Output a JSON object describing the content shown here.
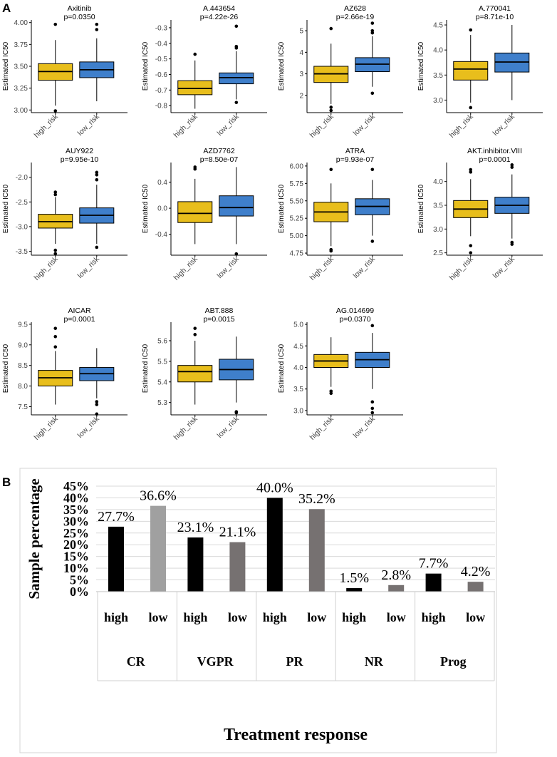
{
  "panel_a": {
    "label": "A",
    "groups": [
      "high_risk",
      "low_risk"
    ],
    "ylabel": "Estimated IC50",
    "colors": {
      "high_risk": "#E8BE1C",
      "low_risk": "#3F7FCB"
    }
  },
  "panel_b": {
    "label": "B",
    "colors": {
      "high": "#000000",
      "low_cr": "#A0A0A0",
      "low": "#767171"
    }
  },
  "chart_data": [
    {
      "type": "box",
      "title": "Axitinib",
      "pvalue": "p=0.0350",
      "ylabel": "Estimated IC50",
      "categories": [
        "high_risk",
        "low_risk"
      ],
      "ylim": [
        2.97,
        4.03
      ],
      "yticks": [
        3.0,
        3.25,
        3.5,
        3.75,
        4.0
      ],
      "ytick_labels": [
        "3.00",
        "3.25",
        "3.50",
        "3.75",
        "4.00"
      ],
      "boxes": [
        {
          "min": 3.05,
          "q1": 3.34,
          "median": 3.44,
          "q3": 3.53,
          "max": 3.8,
          "outliers": [
            2.99,
            3.98
          ]
        },
        {
          "min": 3.1,
          "q1": 3.37,
          "median": 3.46,
          "q3": 3.55,
          "max": 3.82,
          "outliers": [
            3.92,
            3.98
          ]
        }
      ]
    },
    {
      "type": "box",
      "title": "A.443654",
      "pvalue": "p=4.22e-26",
      "ylabel": "Estimated IC50",
      "categories": [
        "high_risk",
        "low_risk"
      ],
      "ylim": [
        -0.845,
        -0.25
      ],
      "yticks": [
        -0.8,
        -0.7,
        -0.6,
        -0.5,
        -0.4,
        -0.3
      ],
      "ytick_labels": [
        "-0.8",
        "-0.7",
        "-0.6",
        "-0.5",
        "-0.4",
        "-0.3"
      ],
      "boxes": [
        {
          "min": -0.82,
          "q1": -0.73,
          "median": -0.69,
          "q3": -0.64,
          "max": -0.51,
          "outliers": [
            -0.47
          ]
        },
        {
          "min": -0.76,
          "q1": -0.66,
          "median": -0.62,
          "q3": -0.59,
          "max": -0.45,
          "outliers": [
            -0.78,
            -0.43,
            -0.42,
            -0.29
          ]
        }
      ]
    },
    {
      "type": "box",
      "title": "AZ628",
      "pvalue": "p=2.66e-19",
      "ylabel": "Estimated IC50",
      "categories": [
        "high_risk",
        "low_risk"
      ],
      "ylim": [
        1.2,
        5.5
      ],
      "yticks": [
        2,
        3,
        4,
        5
      ],
      "ytick_labels": [
        "2",
        "3",
        "4",
        "5"
      ],
      "boxes": [
        {
          "min": 1.6,
          "q1": 2.6,
          "median": 3.0,
          "q3": 3.35,
          "max": 4.4,
          "outliers": [
            1.3,
            1.45,
            5.1
          ]
        },
        {
          "min": 2.4,
          "q1": 3.1,
          "median": 3.45,
          "q3": 3.75,
          "max": 4.75,
          "outliers": [
            2.1,
            4.9,
            5.0,
            5.35
          ]
        }
      ]
    },
    {
      "type": "box",
      "title": "A.770041",
      "pvalue": "p=8.71e-10",
      "ylabel": "Estimated IC50",
      "categories": [
        "high_risk",
        "low_risk"
      ],
      "ylim": [
        2.75,
        4.6
      ],
      "yticks": [
        3.0,
        3.5,
        4.0,
        4.5
      ],
      "ytick_labels": [
        "3.0",
        "3.5",
        "4.0",
        "4.5"
      ],
      "boxes": [
        {
          "min": 2.95,
          "q1": 3.4,
          "median": 3.62,
          "q3": 3.77,
          "max": 4.3,
          "outliers": [
            2.85,
            4.4
          ]
        },
        {
          "min": 3.0,
          "q1": 3.56,
          "median": 3.76,
          "q3": 3.94,
          "max": 4.5,
          "outliers": []
        }
      ]
    },
    {
      "type": "box",
      "title": "AUY922",
      "pvalue": "p=9.95e-10",
      "ylabel": "Estimated IC50",
      "categories": [
        "high_risk",
        "low_risk"
      ],
      "ylim": [
        -3.58,
        -1.7
      ],
      "yticks": [
        -3.5,
        -3.0,
        -2.5,
        -2.0
      ],
      "ytick_labels": [
        "-3.5",
        "-3.0",
        "-2.5",
        "-2.0"
      ],
      "boxes": [
        {
          "min": -3.35,
          "q1": -3.03,
          "median": -2.9,
          "q3": -2.75,
          "max": -2.4,
          "outliers": [
            -3.55,
            -3.48,
            -2.35,
            -2.3
          ]
        },
        {
          "min": -3.35,
          "q1": -2.93,
          "median": -2.77,
          "q3": -2.62,
          "max": -2.15,
          "outliers": [
            -3.42,
            -2.05,
            -1.95,
            -1.9
          ]
        }
      ]
    },
    {
      "type": "box",
      "title": "AZD7762",
      "pvalue": "p=8.50e-07",
      "ylabel": "Estimated IC50",
      "categories": [
        "high_risk",
        "low_risk"
      ],
      "ylim": [
        -0.72,
        0.7
      ],
      "yticks": [
        -0.4,
        0.0,
        0.4
      ],
      "ytick_labels": [
        "-0.4",
        "0.0",
        "0.4"
      ],
      "boxes": [
        {
          "min": -0.55,
          "q1": -0.22,
          "median": -0.08,
          "q3": 0.1,
          "max": 0.45,
          "outliers": [
            0.6,
            0.63
          ]
        },
        {
          "min": -0.55,
          "q1": -0.12,
          "median": 0.01,
          "q3": 0.19,
          "max": 0.63,
          "outliers": [
            -0.7
          ]
        }
      ]
    },
    {
      "type": "box",
      "title": "ATRA",
      "pvalue": "p=9.93e-07",
      "ylabel": "Estimated IC50",
      "categories": [
        "high_risk",
        "low_risk"
      ],
      "ylim": [
        4.72,
        6.05
      ],
      "yticks": [
        4.75,
        5.0,
        5.25,
        5.5,
        5.75,
        6.0
      ],
      "ytick_labels": [
        "4.75",
        "5.00",
        "5.25",
        "5.50",
        "5.75",
        "6.00"
      ],
      "boxes": [
        {
          "min": 4.85,
          "q1": 5.2,
          "median": 5.34,
          "q3": 5.48,
          "max": 5.75,
          "outliers": [
            4.78,
            4.8,
            5.95
          ]
        },
        {
          "min": 5.0,
          "q1": 5.3,
          "median": 5.42,
          "q3": 5.53,
          "max": 5.8,
          "outliers": [
            4.92,
            5.95
          ]
        }
      ]
    },
    {
      "type": "box",
      "title": "AKT.inhibitor.VIII",
      "pvalue": "p=0.0001",
      "ylabel": "Estimated IC50",
      "categories": [
        "high_risk",
        "low_risk"
      ],
      "ylim": [
        2.45,
        4.4
      ],
      "yticks": [
        2.5,
        3.0,
        3.5,
        4.0
      ],
      "ytick_labels": [
        "2.5",
        "3.0",
        "3.5",
        "4.0"
      ],
      "boxes": [
        {
          "min": 2.85,
          "q1": 3.24,
          "median": 3.42,
          "q3": 3.6,
          "max": 4.05,
          "outliers": [
            2.5,
            2.65,
            4.2,
            4.25
          ]
        },
        {
          "min": 2.8,
          "q1": 3.33,
          "median": 3.5,
          "q3": 3.67,
          "max": 4.15,
          "outliers": [
            2.68,
            2.72,
            4.3,
            4.35
          ]
        }
      ]
    },
    {
      "type": "box",
      "title": "AICAR",
      "pvalue": "p=0.0001",
      "ylabel": "Estimated IC50",
      "categories": [
        "high_risk",
        "low_risk"
      ],
      "ylim": [
        7.3,
        9.55
      ],
      "yticks": [
        7.5,
        8.0,
        8.5,
        9.0,
        9.5
      ],
      "ytick_labels": [
        "7.5",
        "8.0",
        "8.5",
        "9.0",
        "9.5"
      ],
      "boxes": [
        {
          "min": 7.55,
          "q1": 8.0,
          "median": 8.2,
          "q3": 8.38,
          "max": 8.85,
          "outliers": [
            8.95,
            9.2,
            9.4
          ]
        },
        {
          "min": 7.7,
          "q1": 8.13,
          "median": 8.3,
          "q3": 8.45,
          "max": 8.92,
          "outliers": [
            7.32,
            7.55,
            7.62
          ]
        }
      ]
    },
    {
      "type": "box",
      "title": "ABT.888",
      "pvalue": "p=0.0015",
      "ylabel": "Estimated IC50",
      "categories": [
        "high_risk",
        "low_risk"
      ],
      "ylim": [
        5.24,
        5.69
      ],
      "yticks": [
        5.3,
        5.4,
        5.5,
        5.6
      ],
      "ytick_labels": [
        "5.3",
        "5.4",
        "5.5",
        "5.6"
      ],
      "boxes": [
        {
          "min": 5.29,
          "q1": 5.4,
          "median": 5.45,
          "q3": 5.48,
          "max": 5.6,
          "outliers": [
            5.63,
            5.66
          ]
        },
        {
          "min": 5.3,
          "q1": 5.41,
          "median": 5.46,
          "q3": 5.51,
          "max": 5.62,
          "outliers": [
            5.25,
            5.255
          ]
        }
      ]
    },
    {
      "type": "box",
      "title": "AG.014699",
      "pvalue": "p=0.0370",
      "ylabel": "Estimated IC50",
      "categories": [
        "high_risk",
        "low_risk"
      ],
      "ylim": [
        2.9,
        5.05
      ],
      "yticks": [
        3.0,
        3.5,
        4.0,
        4.5,
        5.0
      ],
      "ytick_labels": [
        "3.0",
        "3.5",
        "4.0",
        "4.5",
        "5.0"
      ],
      "boxes": [
        {
          "min": 3.55,
          "q1": 4.0,
          "median": 4.15,
          "q3": 4.3,
          "max": 4.7,
          "outliers": [
            3.4,
            3.45
          ]
        },
        {
          "min": 3.5,
          "q1": 4.0,
          "median": 4.18,
          "q3": 4.35,
          "max": 4.8,
          "outliers": [
            2.95,
            3.05,
            3.2,
            4.97
          ]
        }
      ]
    },
    {
      "type": "bar",
      "title": "",
      "xlabel": "Treatment response",
      "ylabel": "Sample percentage",
      "ylim": [
        0,
        45
      ],
      "yticks": [
        0,
        5,
        10,
        15,
        20,
        25,
        30,
        35,
        40,
        45
      ],
      "ytick_labels": [
        "0%",
        "5%",
        "10%",
        "15%",
        "20%",
        "25%",
        "30%",
        "35%",
        "40%",
        "45%"
      ],
      "categories": [
        "CR",
        "VGPR",
        "PR",
        "NR",
        "Prog"
      ],
      "series": [
        {
          "name": "high",
          "values": [
            27.7,
            23.1,
            40.0,
            1.5,
            7.7
          ],
          "labels": [
            "27.7%",
            "23.1%",
            "40.0%",
            "1.5%",
            "7.7%"
          ]
        },
        {
          "name": "low",
          "values": [
            36.6,
            21.1,
            35.2,
            2.8,
            4.2
          ],
          "labels": [
            "36.6%",
            "21.1%",
            "35.2%",
            "2.8%",
            "4.2%"
          ]
        }
      ]
    }
  ]
}
